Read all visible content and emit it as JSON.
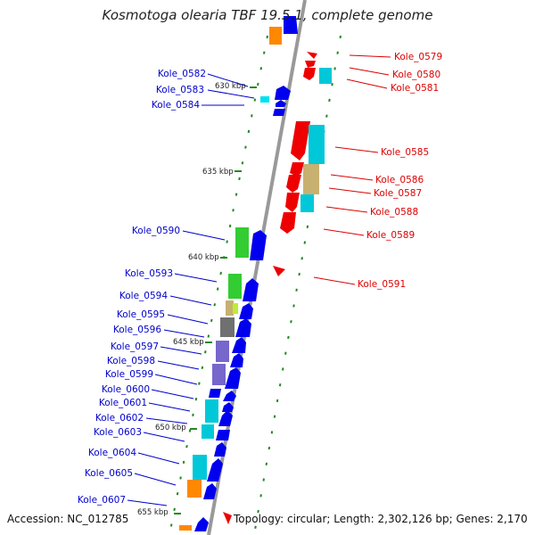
{
  "title": "Kosmotoga olearia TBF 19.5.1, complete genome",
  "accession_text": "Accession: NC_012785",
  "summary_text": "Topology: circular; Length: 2,302,126 bp; Genes: 2,170",
  "colors": {
    "left_label": "#0000cc",
    "right_label": "#dd0000",
    "backbone": "#999999",
    "tick": "#228822",
    "blue": "#0000ee",
    "red": "#ee0000",
    "cyan": "#00c8d8",
    "green": "#33cc33",
    "orange": "#ff8800",
    "khaki": "#c8b070",
    "gray": "#707070",
    "purple": "#7766cc",
    "lime": "#bbee33"
  },
  "scale_labels": [
    "630 kbp",
    "635 kbp",
    "640 kbp",
    "645 kbp",
    "650 kbp",
    "655 kbp"
  ],
  "left_labels": [
    "Kole_0582",
    "Kole_0583",
    "Kole_0584",
    "Kole_0590",
    "Kole_0593",
    "Kole_0594",
    "Kole_0595",
    "Kole_0596",
    "Kole_0597",
    "Kole_0598",
    "Kole_0599",
    "Kole_0600",
    "Kole_0601",
    "Kole_0602",
    "Kole_0603",
    "Kole_0604",
    "Kole_0605",
    "Kole_0607"
  ],
  "right_labels": [
    "Kole_0579",
    "Kole_0580",
    "Kole_0581",
    "Kole_0585",
    "Kole_0586",
    "Kole_0587",
    "Kole_0588",
    "Kole_0589",
    "Kole_0591"
  ]
}
